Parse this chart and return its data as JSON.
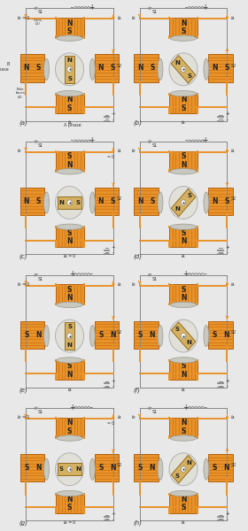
{
  "panels": [
    "(a)",
    "(b)",
    "(c)",
    "(d)",
    "(e)",
    "(f)",
    "(g)",
    "(h)"
  ],
  "orange": "#E8922A",
  "bg_gray": "#f0f0f0",
  "circuit_gray": "#888888",
  "stator_orange": "#E8922A",
  "stator_stripe": "#CC7010",
  "stator_edge": "#AA5500",
  "pole_face_fill": "#C8C8C0",
  "pole_face_edge": "#999990",
  "rotor_fill": "#D4B060",
  "rotor_edge": "#8A6010",
  "rotor_circle_fill": "#E0E0D8",
  "rotor_circle_edge": "#AAAAAA",
  "label_color": "#333333",
  "rotor_angles_deg": [
    0,
    45,
    90,
    135,
    0,
    45,
    90,
    135
  ],
  "IB_zero": [
    true,
    false,
    false,
    false,
    true,
    false,
    true,
    false
  ],
  "IA_zero": [
    false,
    false,
    true,
    false,
    false,
    false,
    true,
    false
  ],
  "minus_first": [
    true,
    true,
    true,
    true,
    false,
    false,
    false,
    false
  ],
  "top_poles": [
    [
      "N",
      "S"
    ],
    [
      "N",
      "S"
    ],
    [
      "S",
      "N"
    ],
    [
      "S",
      "N"
    ],
    [
      "S",
      "N"
    ],
    [
      "S",
      "N"
    ],
    [
      "N",
      "S"
    ],
    [
      "N",
      "S"
    ]
  ],
  "bot_poles": [
    [
      "N",
      "S"
    ],
    [
      "N",
      "S"
    ],
    [
      "S",
      "N"
    ],
    [
      "S",
      "N"
    ],
    [
      "S",
      "N"
    ],
    [
      "S",
      "N"
    ],
    [
      "N",
      "S"
    ],
    [
      "N",
      "S"
    ]
  ],
  "left_poles": [
    [
      "N",
      "S"
    ],
    [
      "N",
      "S"
    ],
    [
      "N",
      "S"
    ],
    [
      "N",
      "S"
    ],
    [
      "S",
      "N"
    ],
    [
      "S",
      "N"
    ],
    [
      "S",
      "N"
    ],
    [
      "S",
      "N"
    ]
  ],
  "right_poles": [
    [
      "N",
      "S"
    ],
    [
      "N",
      "S"
    ],
    [
      "N",
      "S"
    ],
    [
      "N",
      "S"
    ],
    [
      "S",
      "N"
    ],
    [
      "S",
      "N"
    ],
    [
      "S",
      "N"
    ],
    [
      "S",
      "N"
    ]
  ],
  "rotor_NS": [
    [
      "N",
      "S"
    ],
    [
      "N",
      "S"
    ],
    [
      "N",
      "S"
    ],
    [
      "N",
      "S"
    ],
    [
      "S",
      "N"
    ],
    [
      "S",
      "N"
    ],
    [
      "S",
      "N"
    ],
    [
      "S",
      "N"
    ]
  ]
}
